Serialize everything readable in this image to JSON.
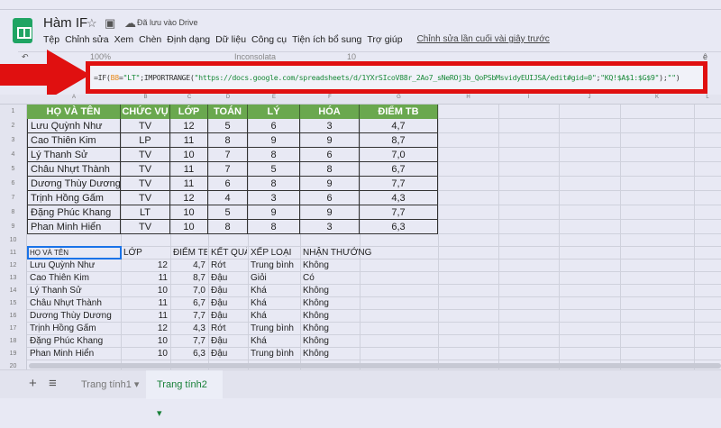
{
  "app": {
    "title": "Hàm IF",
    "saved_status": "Đã lưu vào Drive",
    "last_edit": "Chỉnh sửa lần cuối vài giây trước",
    "menu": [
      "Tệp",
      "Chỉnh sửa",
      "Xem",
      "Chèn",
      "Định dạng",
      "Dữ liệu",
      "Công cụ",
      "Tiện ích bổ sung",
      "Trợ giúp"
    ]
  },
  "toolbar": {
    "zoom": "100%",
    "font": "Inconsolata",
    "size": "10"
  },
  "formula": {
    "p1": "=IF(",
    "ref": "B8",
    "p2": "=",
    "s1": "\"LT\"",
    "p3": ";IMPORTRANGE(",
    "s2": "\"https://docs.google.com/spreadsheets/d/1YXrSIcoV88r_2Ao7_sNeROj3b_QoPSbMsvidyEUIJSA/edit#gid=0\"",
    "p4": ";",
    "s3": "\"KQ!$A$1:$G$9\"",
    "p5": ");",
    "s4": "\"\"",
    "p6": ")"
  },
  "columns": [
    "A",
    "B",
    "C",
    "D",
    "E",
    "F",
    "G",
    "H",
    "I",
    "J",
    "K",
    "L"
  ],
  "table1": {
    "header": [
      "HỌ VÀ TÊN",
      "CHỨC VỤ",
      "LỚP",
      "TOÁN",
      "LÝ",
      "HÓA",
      "ĐIỂM TB"
    ],
    "header_color": "#6aa84f",
    "rows": [
      [
        "Lưu Quỳnh Như",
        "TV",
        "12",
        "5",
        "6",
        "3",
        "4,7"
      ],
      [
        "Cao Thiên Kim",
        "LP",
        "11",
        "8",
        "9",
        "9",
        "8,7"
      ],
      [
        "Lý Thanh Sử",
        "TV",
        "10",
        "7",
        "8",
        "6",
        "7,0"
      ],
      [
        "Châu Nhựt Thành",
        "TV",
        "11",
        "7",
        "5",
        "8",
        "6,7"
      ],
      [
        "Dương Thùy Dương",
        "TV",
        "11",
        "6",
        "8",
        "9",
        "7,7"
      ],
      [
        "Trịnh Hồng Gấm",
        "TV",
        "12",
        "4",
        "3",
        "6",
        "4,3"
      ],
      [
        "Đặng Phúc Khang",
        "LT",
        "10",
        "5",
        "9",
        "9",
        "7,7"
      ],
      [
        "Phan Minh Hiển",
        "TV",
        "10",
        "8",
        "8",
        "3",
        "6,3"
      ]
    ]
  },
  "table2": {
    "header": [
      "HỌ VÀ TÊN",
      "LỚP",
      "ĐIỂM TB",
      "KẾT QUẢ",
      "XẾP LOẠI",
      "NHẬN THƯỞNG"
    ],
    "rows": [
      [
        "Lưu Quỳnh Như",
        "12",
        "4,7",
        "Rớt",
        "Trung bình",
        "Không"
      ],
      [
        "Cao Thiên Kim",
        "11",
        "8,7",
        "Đậu",
        "Giỏi",
        "Có"
      ],
      [
        "Lý Thanh Sử",
        "10",
        "7,0",
        "Đậu",
        "Khá",
        "Không"
      ],
      [
        "Châu Nhựt Thành",
        "11",
        "6,7",
        "Đậu",
        "Khá",
        "Không"
      ],
      [
        "Dương Thùy Dương",
        "11",
        "7,7",
        "Đậu",
        "Khá",
        "Không"
      ],
      [
        "Trịnh Hồng Gấm",
        "12",
        "4,3",
        "Rớt",
        "Trung bình",
        "Không"
      ],
      [
        "Đặng Phúc Khang",
        "10",
        "7,7",
        "Đậu",
        "Khá",
        "Không"
      ],
      [
        "Phan Minh Hiển",
        "10",
        "6,3",
        "Đậu",
        "Trung bình",
        "Không"
      ]
    ]
  },
  "sheets": {
    "tabs": [
      "Trang tính1",
      "Trang tính2"
    ],
    "active": 1,
    "add": "+",
    "list": "≡"
  },
  "accent": "#e01010"
}
